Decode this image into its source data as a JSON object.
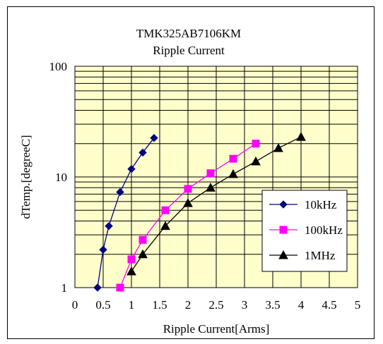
{
  "chart_data": {
    "type": "line",
    "title": "TMK325AB7106KM",
    "subtitle": "Ripple Current",
    "xlabel": "Ripple Current[Arms]",
    "ylabel": "dTemp.[degreeC]",
    "xlim": [
      0,
      5
    ],
    "ylim": [
      1,
      100
    ],
    "yscale": "log",
    "grid": true,
    "legend_position": "right",
    "x_ticks": [
      "0",
      "0.5",
      "1",
      "1.5",
      "2",
      "2.5",
      "3",
      "3.5",
      "4",
      "4.5",
      "5"
    ],
    "y_ticks": [
      "1",
      "10",
      "100"
    ],
    "plot_background": "#ffffcc",
    "series": [
      {
        "name": "10kHz",
        "color": "#000080",
        "marker": "diamond",
        "x": [
          0.4,
          0.5,
          0.6,
          0.8,
          1.0,
          1.2,
          1.4
        ],
        "y": [
          1.0,
          2.2,
          3.6,
          7.3,
          11.8,
          16.6,
          22.5
        ]
      },
      {
        "name": "100kHz",
        "color": "#ff00ff",
        "marker": "square",
        "x": [
          0.8,
          1.0,
          1.2,
          1.6,
          2.0,
          2.4,
          2.8,
          3.2
        ],
        "y": [
          1.0,
          1.8,
          2.7,
          5.0,
          7.8,
          10.8,
          14.6,
          20.0
        ]
      },
      {
        "name": "1MHz",
        "color": "#000000",
        "marker": "triangle",
        "x": [
          1.0,
          1.2,
          1.6,
          2.0,
          2.4,
          2.8,
          3.2,
          3.6,
          4.0
        ],
        "y": [
          1.4,
          2.0,
          3.6,
          5.8,
          8.0,
          10.6,
          13.8,
          18.2,
          23.0
        ]
      }
    ]
  }
}
